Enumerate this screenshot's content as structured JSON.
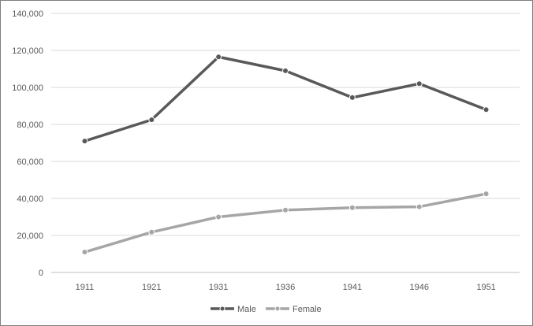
{
  "chart_data": {
    "type": "line",
    "title": "",
    "xlabel": "",
    "ylabel": "",
    "categories": [
      "1911",
      "1921",
      "1931",
      "1936",
      "1941",
      "1946",
      "1951"
    ],
    "series": [
      {
        "name": "Male",
        "color": "#595959",
        "values": [
          71000,
          82500,
          116500,
          109000,
          94500,
          102000,
          88000
        ]
      },
      {
        "name": "Female",
        "color": "#a6a6a6",
        "values": [
          11000,
          21800,
          30000,
          33700,
          35000,
          35500,
          42500
        ]
      }
    ],
    "ylim": [
      0,
      140000
    ],
    "yticks": [
      0,
      20000,
      40000,
      60000,
      80000,
      100000,
      120000,
      140000
    ],
    "ytick_labels": [
      "0",
      "20,000",
      "40,000",
      "60,000",
      "80,000",
      "100,000",
      "120,000",
      "140,000"
    ],
    "grid": "horizontal",
    "legend_position": "bottom",
    "marker": "circle"
  }
}
